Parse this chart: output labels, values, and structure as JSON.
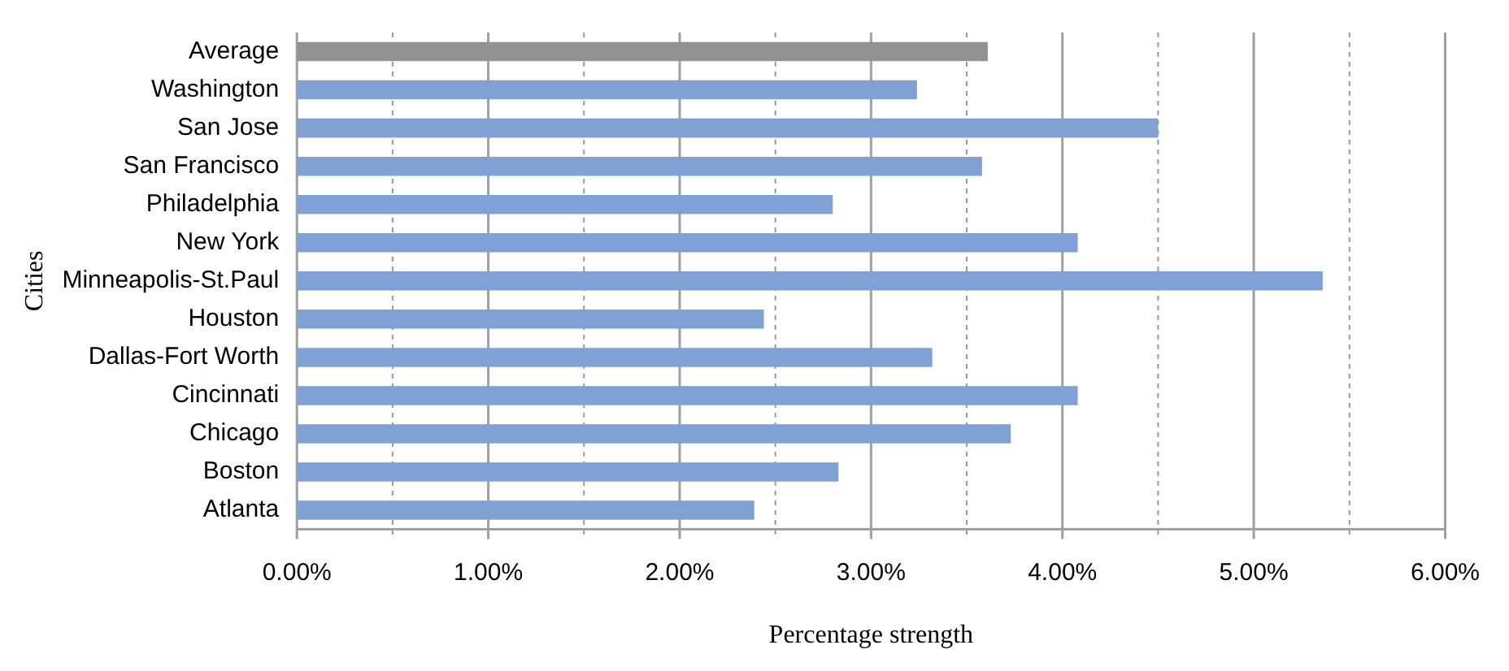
{
  "chart_data": {
    "type": "bar",
    "orientation": "horizontal",
    "xlabel": "Percentage strength",
    "ylabel": "Cities",
    "categories": [
      "Average",
      "Washington",
      "San Jose",
      "San Francisco",
      "Philadelphia",
      "New York",
      "Minneapolis-St.Paul",
      "Houston",
      "Dallas-Fort Worth",
      "Cincinnati",
      "Chicago",
      "Boston",
      "Atlanta"
    ],
    "values": [
      3.61,
      3.24,
      4.5,
      3.58,
      2.8,
      4.08,
      5.36,
      2.44,
      3.32,
      4.08,
      3.73,
      2.83,
      2.39
    ],
    "colors": [
      "#929292",
      "#7fa1d4",
      "#7fa1d4",
      "#7fa1d4",
      "#7fa1d4",
      "#7fa1d4",
      "#7fa1d4",
      "#7fa1d4",
      "#7fa1d4",
      "#7fa1d4",
      "#7fa1d4",
      "#7fa1d4",
      "#7fa1d4"
    ],
    "xlim": [
      0,
      6
    ],
    "xticks": [
      {
        "value": 0,
        "label": "0.00%"
      },
      {
        "value": 0.5,
        "label": null
      },
      {
        "value": 1,
        "label": "1.00%"
      },
      {
        "value": 1.5,
        "label": null
      },
      {
        "value": 2,
        "label": "2.00%"
      },
      {
        "value": 2.5,
        "label": null
      },
      {
        "value": 3,
        "label": "3.00%"
      },
      {
        "value": 3.5,
        "label": null
      },
      {
        "value": 4,
        "label": "4.00%"
      },
      {
        "value": 4.5,
        "label": null
      },
      {
        "value": 5,
        "label": "5.00%"
      },
      {
        "value": 5.5,
        "label": null
      },
      {
        "value": 6,
        "label": "6.00%"
      }
    ],
    "grid": "x",
    "legend": false
  }
}
